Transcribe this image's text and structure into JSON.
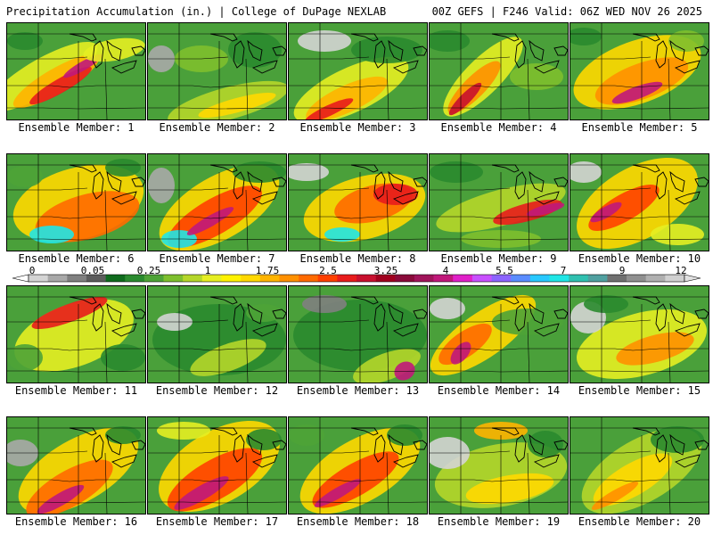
{
  "header": {
    "left": "Precipitation Accumulation (in.) | College of DuPage NEXLAB",
    "right": "00Z GEFS | F246 Valid: 06Z WED NOV 26 2025"
  },
  "colorbar": {
    "tick_labels": [
      "0",
      "0.05",
      "0.25",
      "1",
      "1.75",
      "2.5",
      "3.25",
      "4",
      "5.5",
      "7",
      "9",
      "12"
    ],
    "colors": [
      "#d4d4d4",
      "#a8a8a8",
      "#808080",
      "#5c5c5c",
      "#0f6b1d",
      "#2a8a2f",
      "#4ea337",
      "#7ebf2e",
      "#b5d62a",
      "#e6ee22",
      "#fff200",
      "#ffd800",
      "#ffb400",
      "#ff9000",
      "#ff6a00",
      "#ff4000",
      "#e81c1c",
      "#c8102e",
      "#a0001e",
      "#8a0a3a",
      "#a0145a",
      "#c0187a",
      "#e020c8",
      "#c850ff",
      "#8c64ff",
      "#5a8cff",
      "#28c8ff",
      "#20e6e6",
      "#30c0b0",
      "#50a0a0",
      "#707070",
      "#909090",
      "#b0b0b0",
      "#d0d0d0"
    ]
  },
  "members": [
    {
      "label": "Ensemble Member: 1"
    },
    {
      "label": "Ensemble Member: 2"
    },
    {
      "label": "Ensemble Member: 3"
    },
    {
      "label": "Ensemble Member: 4"
    },
    {
      "label": "Ensemble Member: 5"
    },
    {
      "label": "Ensemble Member: 6"
    },
    {
      "label": "Ensemble Member: 7"
    },
    {
      "label": "Ensemble Member: 8"
    },
    {
      "label": "Ensemble Member: 9"
    },
    {
      "label": "Ensemble Member: 10"
    },
    {
      "label": "Ensemble Member: 11"
    },
    {
      "label": "Ensemble Member: 12"
    },
    {
      "label": "Ensemble Member: 13"
    },
    {
      "label": "Ensemble Member: 14"
    },
    {
      "label": "Ensemble Member: 15"
    },
    {
      "label": "Ensemble Member: 16"
    },
    {
      "label": "Ensemble Member: 17"
    },
    {
      "label": "Ensemble Member: 18"
    },
    {
      "label": "Ensemble Member: 19"
    },
    {
      "label": "Ensemble Member: 20"
    }
  ]
}
